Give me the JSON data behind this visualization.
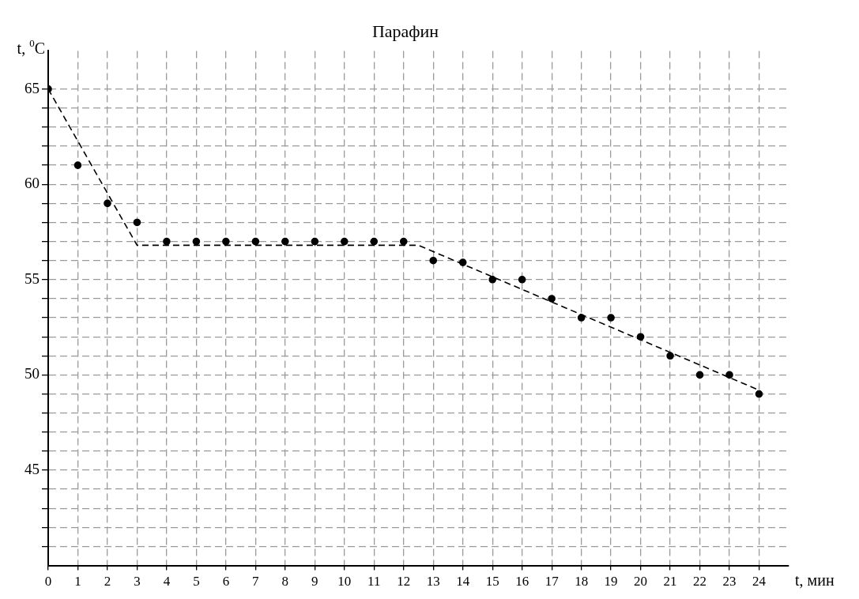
{
  "chart_data": {
    "type": "scatter",
    "title": "Парафин",
    "xlabel": "t, мин",
    "ylabel": "t, $^{0}$C",
    "x": [
      0,
      1,
      2,
      3,
      4,
      5,
      6,
      7,
      8,
      9,
      10,
      11,
      12,
      13,
      14,
      15,
      16,
      17,
      18,
      19,
      20,
      21,
      22,
      23,
      24
    ],
    "series": [
      {
        "type": "scatter",
        "color": "#000000",
        "marker": "circle",
        "values": [
          65,
          61,
          59,
          58,
          57,
          57,
          57,
          57,
          57,
          57,
          57,
          57,
          57,
          56,
          55.9,
          55,
          55,
          54,
          53,
          53,
          52,
          51,
          50,
          50,
          49
        ]
      },
      {
        "type": "line",
        "color": "#000000",
        "marker": "none",
        "line_style": "dashed",
        "x": [
          0,
          3,
          12.5,
          24
        ],
        "values": [
          65,
          56.8,
          56.8,
          49.2
        ]
      }
    ],
    "xlim": [
      0,
      25
    ],
    "xticks": [
      0,
      1,
      2,
      3,
      4,
      5,
      6,
      7,
      8,
      9,
      10,
      11,
      12,
      13,
      14,
      15,
      16,
      17,
      18,
      19,
      20,
      21,
      22,
      23,
      24
    ],
    "ylim": [
      40,
      67
    ],
    "yticks": [
      {
        "value": 41,
        "label": null
      },
      {
        "value": 42,
        "label": null
      },
      {
        "value": 43,
        "label": null
      },
      {
        "value": 44,
        "label": null
      },
      45,
      {
        "value": 46,
        "label": null
      },
      {
        "value": 47,
        "label": null
      },
      {
        "value": 48,
        "label": null
      },
      {
        "value": 49,
        "label": null
      },
      50,
      {
        "value": 51,
        "label": null
      },
      {
        "value": 52,
        "label": null
      },
      {
        "value": 53,
        "label": null
      },
      {
        "value": 54,
        "label": null
      },
      55,
      {
        "value": 56,
        "label": null
      },
      {
        "value": 57,
        "label": null
      },
      {
        "value": 58,
        "label": null
      },
      {
        "value": 59,
        "label": null
      },
      60,
      {
        "value": 61,
        "label": null
      },
      {
        "value": 62,
        "label": null
      },
      {
        "value": 63,
        "label": null
      },
      {
        "value": 64,
        "label": null
      },
      65
    ],
    "grid": true,
    "legend": false
  }
}
